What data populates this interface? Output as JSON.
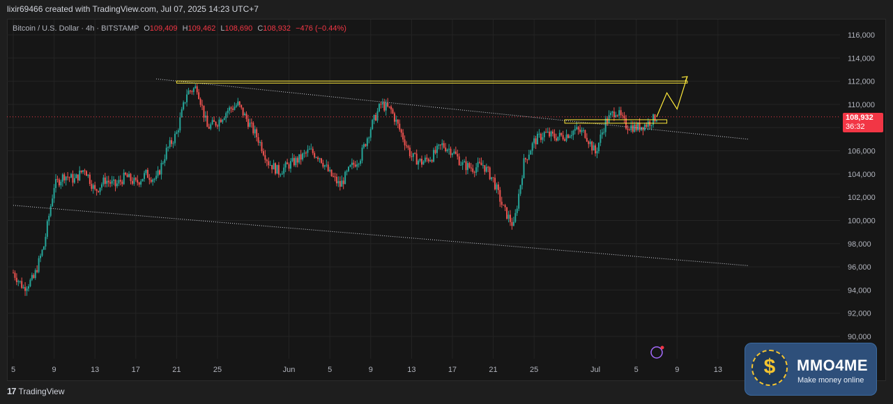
{
  "header": {
    "credit": "lixir69466 created with TradingView.com, Jul 07, 2025 14:23 UTC+7"
  },
  "legend": {
    "symbol": "Bitcoin / U.S. Dollar · 4h · BITSTAMP",
    "open_label": "O",
    "open": "109,409",
    "high_label": "H",
    "high": "109,462",
    "low_label": "L",
    "low": "108,690",
    "close_label": "C",
    "close": "108,932",
    "change": "−476 (−0.44%)"
  },
  "price_badge": {
    "price": "108,932",
    "countdown": "36:32"
  },
  "footer": {
    "logo_mark": "17",
    "logo_text": "TradingView"
  },
  "brand": {
    "name": "MMO4ME",
    "tagline": "Make money online",
    "coin_symbol": "$"
  },
  "colors": {
    "up": "#26a69a",
    "down": "#ef5350",
    "annotation": "#ffeb3b",
    "badge": "#f23645"
  },
  "chart_data": {
    "type": "candlestick",
    "y_ticks": [
      "116,000",
      "114,000",
      "112,000",
      "110,000",
      "108,000",
      "106,000",
      "104,000",
      "102,000",
      "100,000",
      "98,000",
      "96,000",
      "94,000",
      "92,000",
      "90,000"
    ],
    "y_tick_values": [
      116000,
      114000,
      112000,
      110000,
      108000,
      106000,
      104000,
      102000,
      100000,
      98000,
      96000,
      94000,
      92000,
      90000
    ],
    "x_ticks": [
      "5",
      "9",
      "13",
      "17",
      "21",
      "25",
      "Jun",
      "5",
      "9",
      "13",
      "17",
      "21",
      "25",
      "Jul",
      "5",
      "9",
      "13"
    ],
    "x_tick_dates": [
      "2025-05-05",
      "2025-05-09",
      "2025-05-13",
      "2025-05-17",
      "2025-05-21",
      "2025-05-25",
      "2025-06-01",
      "2025-06-05",
      "2025-06-09",
      "2025-06-13",
      "2025-06-17",
      "2025-06-21",
      "2025-06-25",
      "2025-07-01",
      "2025-07-05",
      "2025-07-09",
      "2025-07-13"
    ],
    "last_price": 108932,
    "price_path": [
      [
        "2025-05-05",
        95500
      ],
      [
        "2025-05-06",
        94200
      ],
      [
        "2025-05-07",
        95000
      ],
      [
        "2025-05-08",
        97800
      ],
      [
        "2025-05-09",
        103000
      ],
      [
        "2025-05-10",
        103900
      ],
      [
        "2025-05-11",
        103500
      ],
      [
        "2025-05-12",
        104500
      ],
      [
        "2025-05-13",
        102500
      ],
      [
        "2025-05-14",
        103500
      ],
      [
        "2025-05-15",
        103000
      ],
      [
        "2025-05-16",
        103800
      ],
      [
        "2025-05-17",
        103200
      ],
      [
        "2025-05-18",
        104000
      ],
      [
        "2025-05-19",
        103500
      ],
      [
        "2025-05-20",
        106000
      ],
      [
        "2025-05-21",
        107500
      ],
      [
        "2025-05-22",
        111000
      ],
      [
        "2025-05-23",
        111500
      ],
      [
        "2025-05-24",
        108000
      ],
      [
        "2025-05-25",
        108500
      ],
      [
        "2025-05-26",
        109500
      ],
      [
        "2025-05-27",
        110000
      ],
      [
        "2025-05-28",
        108500
      ],
      [
        "2025-05-29",
        107000
      ],
      [
        "2025-05-30",
        105000
      ],
      [
        "2025-05-31",
        104200
      ],
      [
        "2025-06-01",
        104800
      ],
      [
        "2025-06-02",
        105300
      ],
      [
        "2025-06-03",
        106000
      ],
      [
        "2025-06-04",
        105500
      ],
      [
        "2025-06-05",
        104000
      ],
      [
        "2025-06-06",
        103000
      ],
      [
        "2025-06-07",
        104500
      ],
      [
        "2025-06-08",
        105500
      ],
      [
        "2025-06-09",
        108000
      ],
      [
        "2025-06-10",
        110000
      ],
      [
        "2025-06-11",
        109500
      ],
      [
        "2025-06-12",
        107500
      ],
      [
        "2025-06-13",
        105500
      ],
      [
        "2025-06-14",
        105000
      ],
      [
        "2025-06-15",
        105500
      ],
      [
        "2025-06-16",
        106500
      ],
      [
        "2025-06-17",
        106000
      ],
      [
        "2025-06-18",
        104800
      ],
      [
        "2025-06-19",
        104500
      ],
      [
        "2025-06-20",
        104800
      ],
      [
        "2025-06-21",
        103500
      ],
      [
        "2025-06-22",
        101000
      ],
      [
        "2025-06-23",
        99500
      ],
      [
        "2025-06-24",
        105000
      ],
      [
        "2025-06-25",
        106800
      ],
      [
        "2025-06-26",
        107500
      ],
      [
        "2025-06-27",
        107200
      ],
      [
        "2025-06-28",
        107300
      ],
      [
        "2025-06-29",
        107800
      ],
      [
        "2025-06-30",
        107500
      ],
      [
        "2025-07-01",
        105800
      ],
      [
        "2025-07-02",
        108500
      ],
      [
        "2025-07-03",
        109500
      ],
      [
        "2025-07-04",
        108200
      ],
      [
        "2025-07-05",
        108000
      ],
      [
        "2025-07-06",
        108300
      ],
      [
        "2025-07-07",
        108932
      ]
    ],
    "annotations": {
      "resistance_price": 111900,
      "resistance_from": "2025-05-21",
      "resistance_to": "2025-07-10",
      "support_zone_price": 108500,
      "support_zone_from": "2025-06-28",
      "support_zone_to": "2025-07-08",
      "upper_trendline": [
        [
          "2025-05-19",
          112200
        ],
        [
          "2025-07-16",
          107000
        ]
      ],
      "lower_trendline": [
        [
          "2025-05-05",
          101300
        ],
        [
          "2025-07-16",
          96100
        ]
      ],
      "projection_path": [
        [
          "2025-07-07",
          108932
        ],
        [
          "2025-07-08",
          111000
        ],
        [
          "2025-07-09",
          109600
        ],
        [
          "2025-07-10",
          112400
        ]
      ]
    }
  }
}
